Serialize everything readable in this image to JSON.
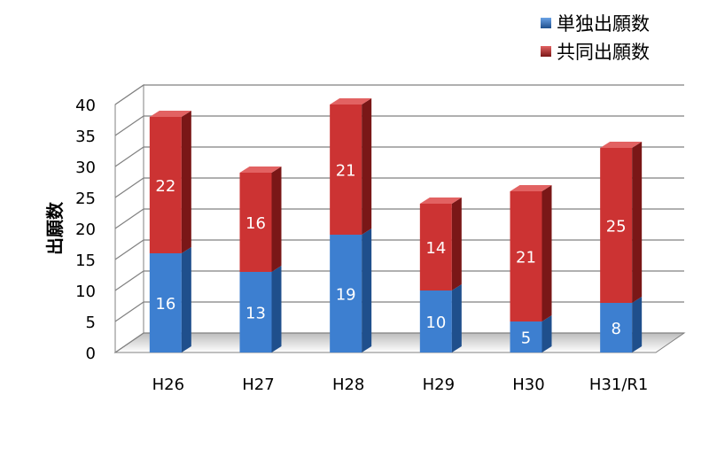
{
  "colors": {
    "single_front": "#3d7fd0",
    "single_side": "#1f4f8c",
    "single_top": "#6aa2e6",
    "joint_front": "#cc3333",
    "joint_side": "#7a1717",
    "joint_top": "#e26262",
    "grid": "#808080",
    "wall_fill": "#ffffff"
  },
  "chart_data": {
    "type": "bar",
    "stacked": true,
    "categories": [
      "H26",
      "H27",
      "H28",
      "H29",
      "H30",
      "H31/R1"
    ],
    "series": [
      {
        "name": "単独出願数",
        "values": [
          16,
          13,
          19,
          10,
          5,
          8
        ],
        "color": "#3d7fd0"
      },
      {
        "name": "共同出願数",
        "values": [
          22,
          16,
          21,
          14,
          21,
          25
        ],
        "color": "#cc3333"
      }
    ],
    "ylabel": "出願数",
    "ylim": [
      0,
      40
    ],
    "yticks": [
      0,
      5,
      10,
      15,
      20,
      25,
      30,
      35,
      40
    ],
    "legend_position": "top-right",
    "grid": true,
    "data_labels": true
  }
}
